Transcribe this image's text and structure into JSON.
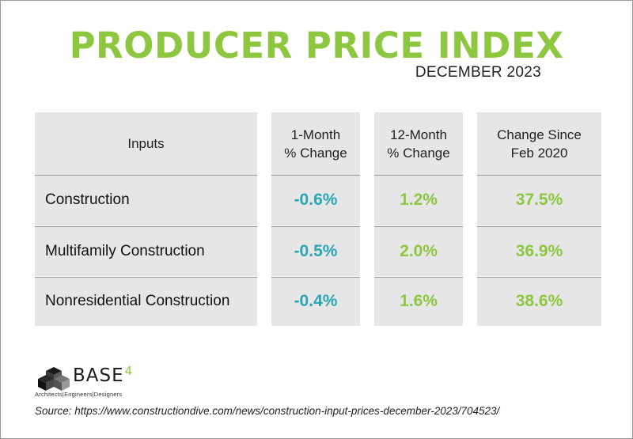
{
  "title": "PRODUCER PRICE INDEX",
  "subtitle": "DECEMBER 2023",
  "chart_data": {
    "type": "table",
    "columns": [
      "Inputs",
      "1-Month\n% Change",
      "12-Month\n% Change",
      "Change Since\nFeb 2020"
    ],
    "rows": [
      {
        "label": "Construction",
        "values": [
          "-0.6%",
          "1.2%",
          "37.5%"
        ]
      },
      {
        "label": "Multifamily Construction",
        "values": [
          "-0.5%",
          "2.0%",
          "36.9%"
        ]
      },
      {
        "label": "Nonresidential Construction",
        "values": [
          "-0.4%",
          "1.6%",
          "38.6%"
        ]
      }
    ],
    "value_colors": [
      "#2aa6b5",
      "#8dc63f",
      "#8dc63f"
    ]
  },
  "colors": {
    "accent_green": "#8dc63f",
    "accent_teal": "#2aa6b5",
    "cell_background": "#e6e6e6"
  },
  "logo": {
    "name": "BASE",
    "superscript": "4",
    "tagline": "Architects|Engineers|Designers",
    "icon": "stacked-cubes-icon"
  },
  "source": "Source: https://www.constructiondive.com/news/construction-input-prices-december-2023/704523/"
}
